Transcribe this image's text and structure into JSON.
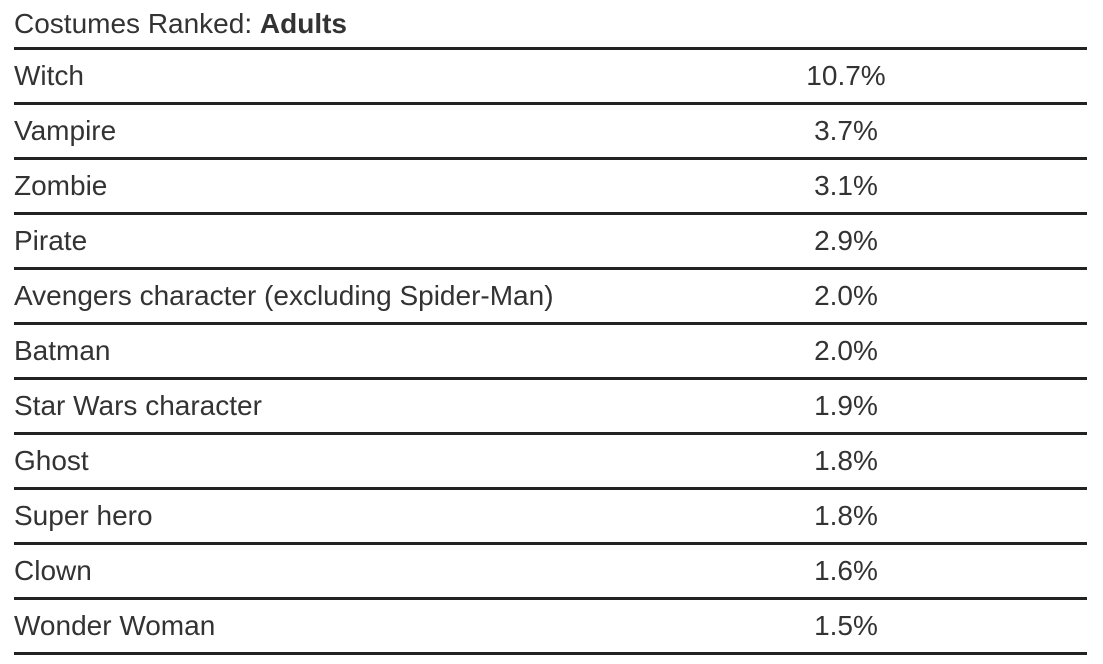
{
  "title": {
    "prefix": "Costumes Ranked:",
    "emphasis": "Adults"
  },
  "table": {
    "rows": [
      {
        "name": "Witch",
        "value": "10.7%"
      },
      {
        "name": "Vampire",
        "value": "3.7%"
      },
      {
        "name": "Zombie",
        "value": "3.1%"
      },
      {
        "name": "Pirate",
        "value": "2.9%"
      },
      {
        "name": "Avengers character (excluding Spider-Man)",
        "value": "2.0%"
      },
      {
        "name": "Batman",
        "value": "2.0%"
      },
      {
        "name": "Star Wars character",
        "value": "1.9%"
      },
      {
        "name": "Ghost",
        "value": "1.8%"
      },
      {
        "name": "Super hero",
        "value": "1.8%"
      },
      {
        "name": "Clown",
        "value": "1.6%"
      },
      {
        "name": "Wonder Woman",
        "value": "1.5%"
      }
    ]
  }
}
